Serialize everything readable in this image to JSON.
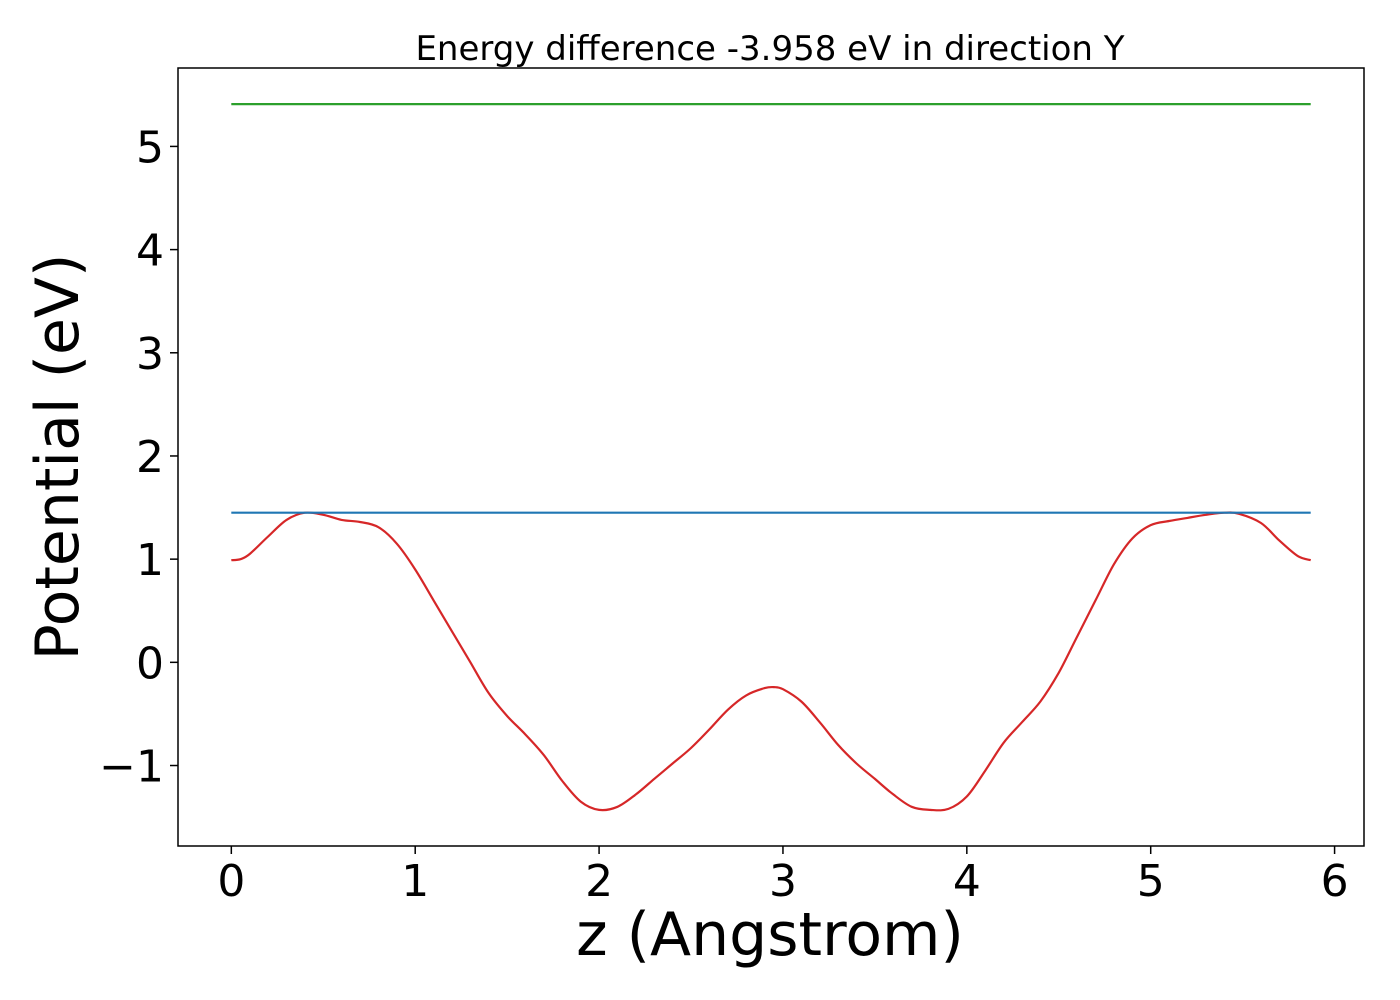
{
  "chart_data": {
    "type": "line",
    "title": "Energy difference -3.958 eV in direction Y",
    "xlabel": "z (Angstrom)",
    "ylabel": "Potential (eV)",
    "xlim": [
      -0.29,
      6.16
    ],
    "ylim": [
      -1.78,
      5.76
    ],
    "x_ticks": [
      0,
      1,
      2,
      3,
      4,
      5,
      6
    ],
    "y_ticks": [
      -1,
      0,
      1,
      2,
      3,
      4,
      5
    ],
    "x_tick_labels": [
      "0",
      "1",
      "2",
      "3",
      "4",
      "5",
      "6"
    ],
    "y_tick_labels": [
      "−1",
      "0",
      "1",
      "2",
      "3",
      "4",
      "5"
    ],
    "grid": false,
    "legend": "none",
    "series": [
      {
        "color": "#d62728",
        "x": [
          0.0,
          0.05,
          0.1,
          0.2,
          0.3,
          0.4,
          0.5,
          0.6,
          0.7,
          0.8,
          0.9,
          1.0,
          1.1,
          1.2,
          1.3,
          1.4,
          1.5,
          1.6,
          1.7,
          1.8,
          1.9,
          2.0,
          2.1,
          2.2,
          2.3,
          2.4,
          2.5,
          2.6,
          2.7,
          2.8,
          2.9,
          2.95,
          3.0,
          3.1,
          3.2,
          3.3,
          3.4,
          3.5,
          3.6,
          3.7,
          3.8,
          3.9,
          4.0,
          4.1,
          4.2,
          4.3,
          4.4,
          4.5,
          4.6,
          4.7,
          4.8,
          4.9,
          5.0,
          5.1,
          5.2,
          5.3,
          5.4,
          5.48,
          5.6,
          5.7,
          5.8,
          5.87
        ],
        "y": [
          0.99,
          1.0,
          1.05,
          1.22,
          1.38,
          1.45,
          1.43,
          1.38,
          1.36,
          1.31,
          1.15,
          0.9,
          0.6,
          0.3,
          0.0,
          -0.3,
          -0.52,
          -0.7,
          -0.9,
          -1.15,
          -1.35,
          -1.43,
          -1.4,
          -1.28,
          -1.13,
          -0.98,
          -0.83,
          -0.65,
          -0.46,
          -0.32,
          -0.25,
          -0.24,
          -0.26,
          -0.38,
          -0.58,
          -0.8,
          -0.98,
          -1.13,
          -1.28,
          -1.4,
          -1.43,
          -1.42,
          -1.3,
          -1.05,
          -0.78,
          -0.58,
          -0.38,
          -0.1,
          0.25,
          0.6,
          0.95,
          1.2,
          1.33,
          1.37,
          1.4,
          1.43,
          1.45,
          1.44,
          1.35,
          1.18,
          1.03,
          0.99
        ]
      },
      {
        "color": "#1f77b4",
        "x": [
          0.0,
          5.87
        ],
        "y": [
          1.45,
          1.45
        ]
      },
      {
        "color": "#2ca02c",
        "x": [
          0.0,
          5.87
        ],
        "y": [
          5.41,
          5.41
        ]
      }
    ]
  }
}
